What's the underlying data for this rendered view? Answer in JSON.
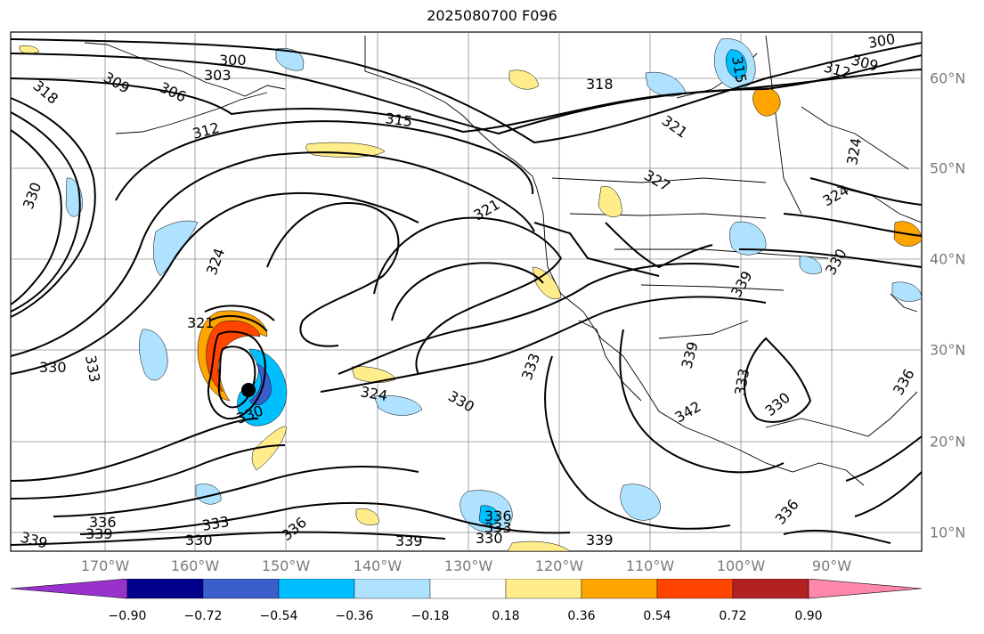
{
  "title": "2025080700 F096",
  "map": {
    "lon_labels": [
      "170°W",
      "160°W",
      "150°W",
      "140°W",
      "130°W",
      "120°W",
      "110°W",
      "100°W",
      "90°W"
    ],
    "lat_labels": [
      "60°N",
      "50°N",
      "40°N",
      "30°N",
      "20°N",
      "10°N"
    ],
    "contour_labels": [
      "300",
      "303",
      "306",
      "309",
      "312",
      "315",
      "318",
      "321",
      "324",
      "327",
      "330",
      "333",
      "336",
      "339",
      "342"
    ]
  },
  "colorbar": {
    "tick_labels": [
      "−0.90",
      "−0.72",
      "−0.54",
      "−0.36",
      "−0.18",
      "0.18",
      "0.36",
      "0.54",
      "0.72",
      "0.90"
    ],
    "colors": [
      "#9932cc",
      "#00008b",
      "#3a5fcd",
      "#00bfff",
      "#aee2ff",
      "#ffffff",
      "#ffec8b",
      "#ffa500",
      "#ff4500",
      "#b22222",
      "#ff88aa"
    ]
  },
  "colors": {
    "positive_strong": "#ff4500",
    "positive": "#ffa500",
    "positive_weak": "#ffec8b",
    "negative_weak": "#aee2ff",
    "negative": "#00bfff",
    "negative_strong": "#3a5fcd"
  }
}
